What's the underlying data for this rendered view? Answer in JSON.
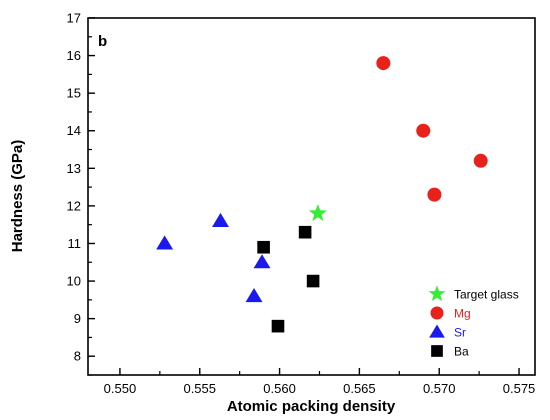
{
  "chart_data": {
    "type": "scatter",
    "panel_label": "b",
    "xlabel": "Atomic packing density",
    "ylabel": "Hardness (GPa)",
    "xlim": [
      0.548,
      0.576
    ],
    "ylim": [
      7.5,
      17
    ],
    "x_ticks": [
      0.55,
      0.555,
      0.56,
      0.565,
      0.57,
      0.575
    ],
    "x_tick_labels": [
      "0.550",
      "0.555",
      "0.560",
      "0.565",
      "0.570",
      "0.575"
    ],
    "y_ticks": [
      8,
      9,
      10,
      11,
      12,
      13,
      14,
      15,
      16,
      17
    ],
    "y_tick_labels": [
      "8",
      "9",
      "10",
      "11",
      "12",
      "13",
      "14",
      "15",
      "16",
      "17"
    ],
    "grid": false,
    "legend_position": "bottom-right",
    "series": [
      {
        "name": "Target glass",
        "marker": "star",
        "color": "#33ee33",
        "label_color": "#000000",
        "points": [
          [
            0.5624,
            11.8
          ]
        ]
      },
      {
        "name": "Mg",
        "marker": "circle",
        "color": "#e8221b",
        "label_color": "#e8221b",
        "points": [
          [
            0.5665,
            15.8
          ],
          [
            0.569,
            14.0
          ],
          [
            0.5697,
            12.3
          ],
          [
            0.5726,
            13.2
          ]
        ]
      },
      {
        "name": "Sr",
        "marker": "triangle",
        "color": "#1a1aee",
        "label_color": "#1a1aee",
        "points": [
          [
            0.5528,
            11.0
          ],
          [
            0.5563,
            11.6
          ],
          [
            0.5589,
            10.5
          ],
          [
            0.5584,
            9.6
          ]
        ]
      },
      {
        "name": "Ba",
        "marker": "square",
        "color": "#000000",
        "label_color": "#000000",
        "points": [
          [
            0.559,
            10.9
          ],
          [
            0.5616,
            11.3
          ],
          [
            0.5621,
            10.0
          ],
          [
            0.5599,
            8.8
          ]
        ]
      }
    ]
  }
}
